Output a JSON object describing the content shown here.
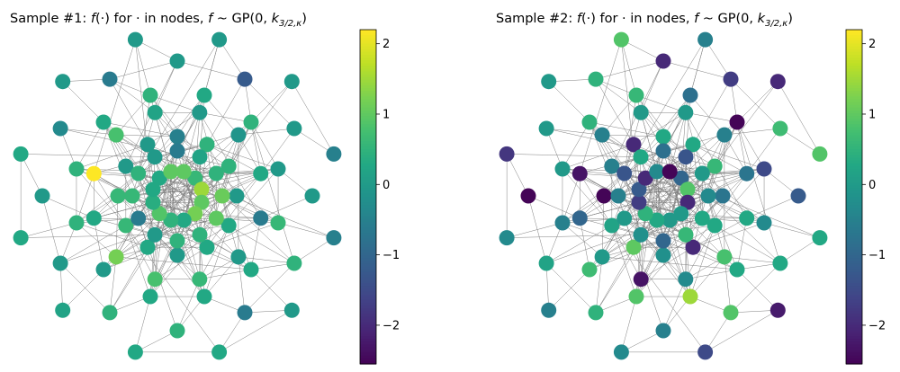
{
  "chart_data": [
    {
      "type": "scatter",
      "title": "Sample #1: f(·) for · in nodes, f ~ GP(0, k3/2,κ)",
      "title_parts": {
        "prefix": "Sample #1: ",
        "f": "f",
        "paren": "(·) for · in nodes, ",
        "f2": "f",
        "sim": " ~ GP(0, ",
        "k": "k",
        "sub": "3/2,κ",
        "close": ")"
      },
      "colorbar": {
        "range": [
          -2.55,
          2.2
        ],
        "ticks": [
          -2,
          -1,
          0,
          1,
          2
        ],
        "tick_labels": [
          "−2",
          "−1",
          "0",
          "1",
          "2"
        ],
        "colormap": "viridis"
      },
      "node_values": [
        0.0,
        0.0,
        -0.5,
        -0.5,
        0.0,
        0.3,
        0.3,
        0.2,
        0.3,
        0.3,
        0.0,
        0.0,
        -1.2,
        0.0,
        0.0,
        0.5,
        -0.6,
        0.5,
        0.5,
        0.0,
        0.0,
        -0.3,
        -0.6,
        0.0,
        0.3,
        0.5,
        0.0,
        0.6,
        0.3,
        0.3,
        0.3,
        0.0,
        0.5,
        0.5,
        0.3,
        0.5,
        -0.1,
        0.3,
        -0.6,
        0.0,
        0.6,
        0.8,
        1.2,
        0.3,
        2.2,
        0.8,
        0.2,
        0.0,
        0.5,
        0.5,
        0.0,
        0.3,
        0.3,
        0.0,
        0.3,
        0.6,
        0.6,
        0.0,
        0.0,
        -0.5,
        -0.6,
        0.2,
        0.5,
        1.1,
        1.0,
        0.5,
        0.5,
        0.0,
        -0.6,
        0.6,
        0.5,
        0.0,
        0.6,
        1.5,
        1.0,
        1.2,
        0.3,
        0.5,
        0.9,
        0.4,
        0.3,
        0.3,
        1.0,
        1.0
      ]
    },
    {
      "type": "scatter",
      "title": "Sample #2: f(·) for · in nodes, f ~ GP(0, k3/2,κ)",
      "title_parts": {
        "prefix": "Sample #2: ",
        "f": "f",
        "paren": "(·) for · in nodes, ",
        "f2": "f",
        "sim": " ~ GP(0, ",
        "k": "k",
        "sub": "3/2,κ",
        "close": ")"
      },
      "colorbar": {
        "range": [
          -2.55,
          2.2
        ],
        "ticks": [
          -2,
          -1,
          0,
          1,
          2
        ],
        "tick_labels": [
          "−2",
          "−1",
          "0",
          "1",
          "2"
        ],
        "colormap": "viridis"
      },
      "node_values": [
        -0.5,
        -2.0,
        0.9,
        0.3,
        -2.2,
        -1.5,
        -0.3,
        -0.5,
        -0.3,
        -1.8,
        0.0,
        0.9,
        -1.7,
        0.7,
        -1.2,
        0.3,
        0.9,
        -0.5,
        0.5,
        0.2,
        -2.5,
        0.0,
        0.5,
        -2.0,
        -0.8,
        -2.5,
        -1.5,
        -0.3,
        0.3,
        1.5,
        0.9,
        0.7,
        -0.5,
        0.0,
        0.5,
        0.6,
        -0.5,
        -0.7,
        0.3,
        0.8,
        -0.3,
        -2.3,
        0.0,
        -1.0,
        -2.3,
        -0.5,
        0.0,
        0.0,
        0.3,
        0.6,
        -0.7,
        0.3,
        -2.0,
        -0.2,
        1.0,
        0.2,
        -2.5,
        -0.5,
        -2.0,
        0.3,
        -0.8,
        -1.3,
        0.0,
        -0.3,
        0.3,
        0.6,
        -1.0,
        -0.2,
        0.0,
        -0.5,
        -1.3,
        0.3,
        -1.0,
        0.9,
        -2.0,
        0.0,
        0.0,
        0.3,
        0.5,
        -1.7,
        -1.2,
        -2.0,
        -0.3,
        -2.5
      ]
    }
  ]
}
